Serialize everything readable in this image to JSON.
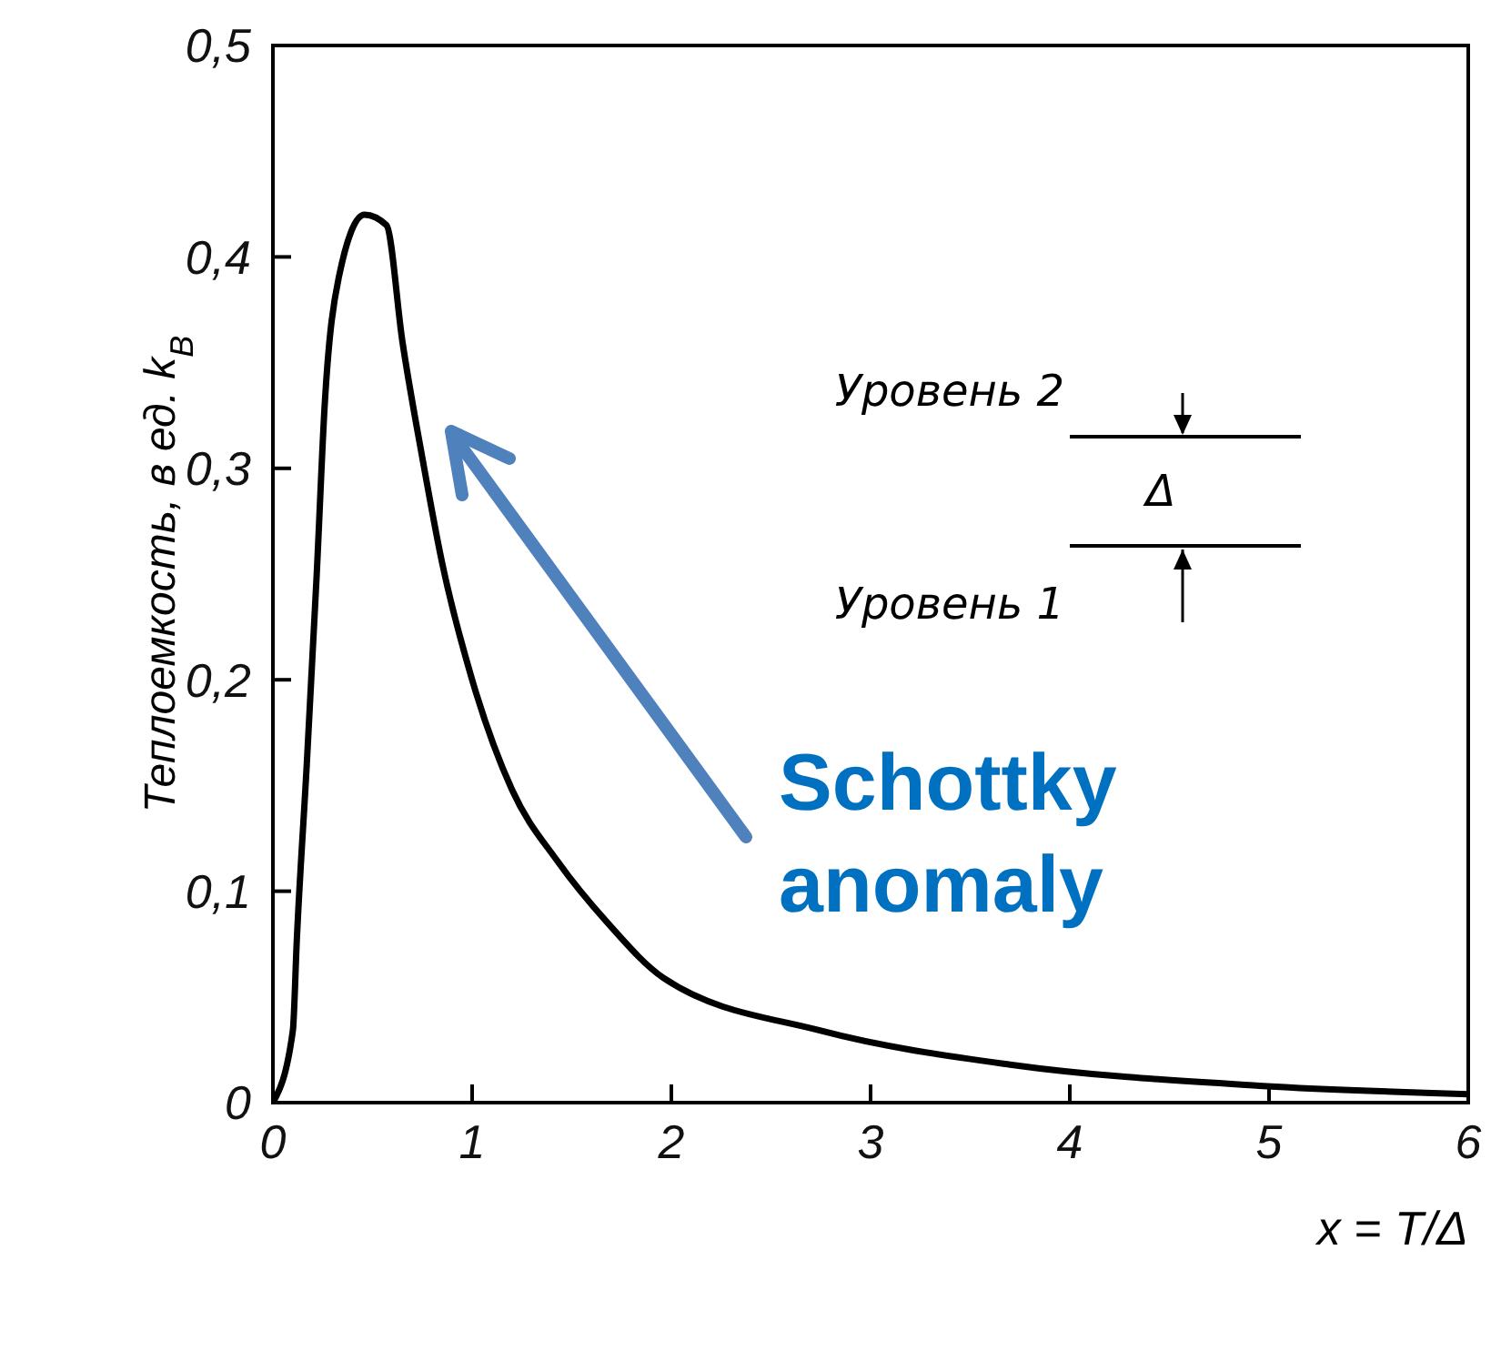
{
  "chart_data": {
    "type": "line",
    "xlabel": "x = T/Δ",
    "ylabel": "Теплоемкость, в ед. k$_{B}$",
    "x": [
      0,
      0.1,
      0.12,
      0.17,
      0.22,
      0.26,
      0.33,
      0.46,
      0.57,
      0.65,
      0.75,
      0.85,
      1.0,
      1.2,
      1.43,
      1.68,
      1.96,
      2.75,
      3.7,
      4.95,
      6.0
    ],
    "series": [
      {
        "color": "#000000",
        "values": [
          0,
          0.034,
          0.077,
          0.16,
          0.25,
          0.33,
          0.39,
          0.42,
          0.415,
          0.36,
          0.305,
          0.255,
          0.2,
          0.148,
          0.114,
          0.085,
          0.059,
          0.034,
          0.018,
          0.008,
          0.004
        ]
      }
    ],
    "xlim": [
      0,
      6
    ],
    "xticks": [
      0,
      1,
      2,
      3,
      4,
      5,
      6
    ],
    "ylim": [
      0,
      0.5
    ],
    "yticks": [
      0,
      {
        "value": 0.1,
        "label": "0,1"
      },
      {
        "value": 0.2,
        "label": "0,2"
      },
      {
        "value": 0.3,
        "label": "0,3"
      },
      {
        "value": 0.4,
        "label": "0,4"
      },
      {
        "value": 0.5,
        "label": "0,5"
      }
    ],
    "grid": false,
    "legend": false,
    "marker": "none",
    "line_style": "solid",
    "annotations": [
      "Уровень 2",
      "Δ",
      "Уровень 1",
      "Schottky anomaly"
    ]
  }
}
